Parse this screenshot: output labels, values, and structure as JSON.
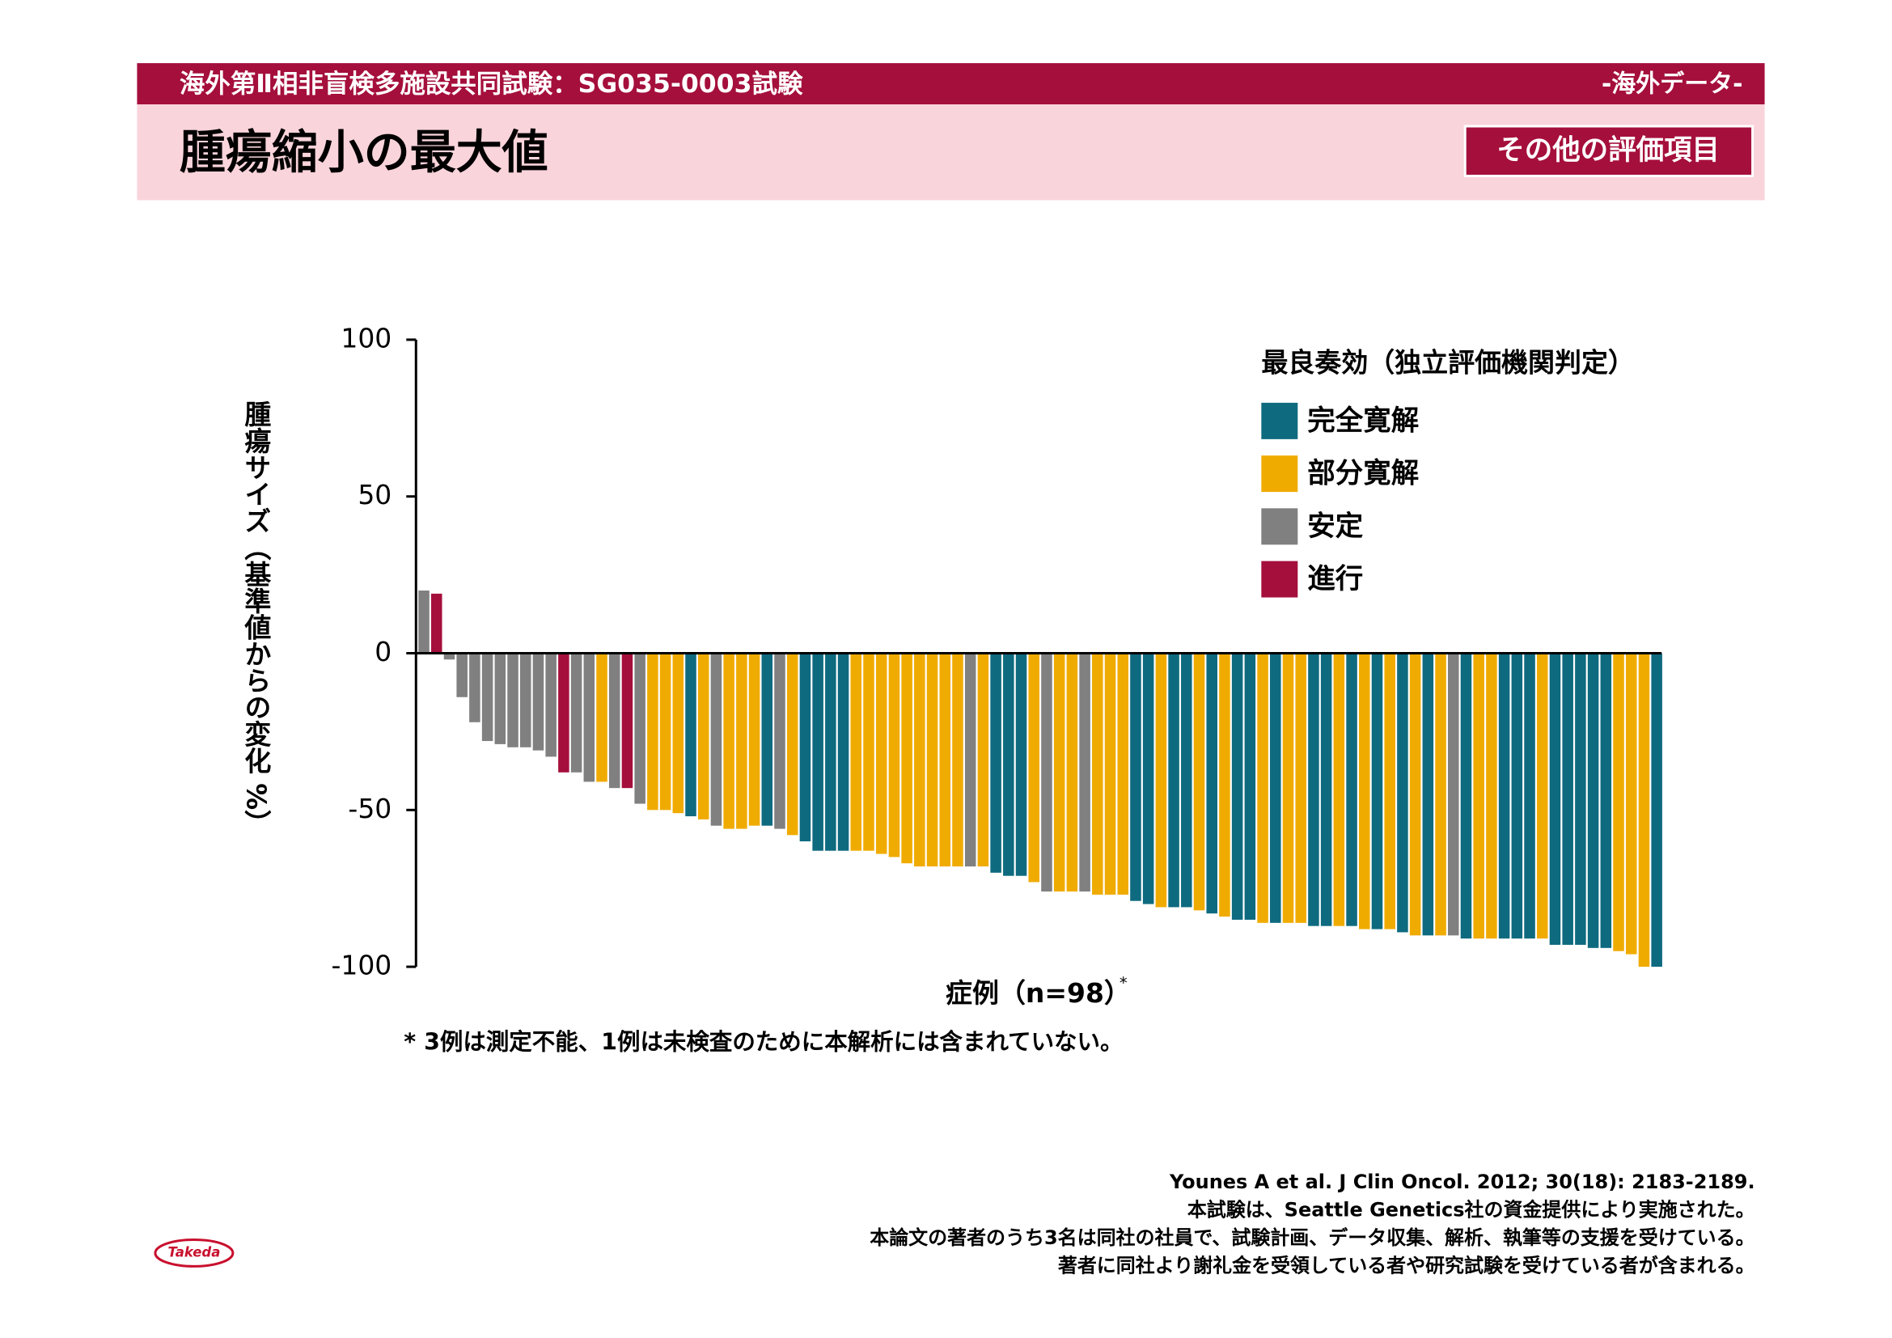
{
  "header": {
    "study": "海外第Ⅱ相非盲検多施設共同試験：SG035-0003試験",
    "tag": "-海外データ-",
    "badge": "その他の評価項目"
  },
  "chart_data": {
    "type": "bar",
    "title": "腫瘍縮小の最大値",
    "ylabel": "腫瘍サイズ（基準値からの変化 %）",
    "xlabel": "症例（n=98）",
    "xlabel_mark": "*",
    "legend_title": "最良奏効（独立評価機関判定）",
    "ylim": [
      -100,
      100
    ],
    "yticks": [
      100,
      50,
      0,
      -50,
      -100
    ],
    "series": [
      {
        "name": "完全寛解",
        "color": "#0e6a7f",
        "values": [
          null,
          null,
          null,
          null,
          null,
          null,
          null,
          null,
          null,
          null,
          null,
          null,
          null,
          null,
          null,
          null,
          null,
          null,
          null,
          null,
          null,
          -52,
          null,
          null,
          null,
          null,
          null,
          -55,
          null,
          null,
          -60,
          -63,
          -63,
          -63,
          null,
          null,
          null,
          null,
          null,
          null,
          null,
          null,
          null,
          null,
          null,
          -70,
          -71,
          -71,
          null,
          null,
          null,
          null,
          null,
          null,
          null,
          null,
          -79,
          -80,
          null,
          -81,
          -81,
          null,
          -83,
          null,
          -85,
          -85,
          null,
          -86,
          null,
          null,
          -87,
          -87,
          null,
          -87,
          null,
          -88,
          null,
          -89,
          null,
          -90,
          null,
          null,
          -91,
          null,
          null,
          -91,
          -91,
          -91,
          null,
          -93,
          -93,
          -93,
          -94,
          -94,
          null,
          null,
          null,
          -100
        ]
      },
      {
        "name": "部分寛解",
        "color": "#f0ab00",
        "values": [
          null,
          null,
          null,
          null,
          null,
          null,
          null,
          null,
          null,
          null,
          null,
          null,
          null,
          null,
          -41,
          null,
          null,
          null,
          -50,
          -50,
          -51,
          null,
          -53,
          null,
          -56,
          -56,
          -55,
          null,
          null,
          -58,
          null,
          null,
          null,
          null,
          -63,
          -63,
          -64,
          -65,
          -67,
          -68,
          -68,
          -68,
          -68,
          null,
          -68,
          null,
          null,
          null,
          -73,
          null,
          -76,
          -76,
          null,
          -77,
          -77,
          -77,
          null,
          null,
          -81,
          null,
          null,
          -82,
          null,
          -84,
          null,
          null,
          -86,
          null,
          -86,
          -86,
          null,
          null,
          -87,
          null,
          -88,
          null,
          -88,
          null,
          -90,
          null,
          -90,
          null,
          null,
          -91,
          -91,
          null,
          null,
          null,
          -91,
          null,
          null,
          null,
          null,
          null,
          -95,
          -96,
          -100,
          null
        ]
      },
      {
        "name": "安定",
        "color": "#808080",
        "values": [
          20,
          null,
          -2,
          -14,
          -22,
          -28,
          -29,
          -30,
          -30,
          -31,
          -33,
          null,
          -38,
          -41,
          null,
          -43,
          null,
          -48,
          null,
          null,
          null,
          null,
          null,
          -55,
          null,
          null,
          null,
          null,
          -56,
          null,
          null,
          null,
          null,
          null,
          null,
          null,
          null,
          null,
          null,
          null,
          null,
          null,
          null,
          -68,
          null,
          null,
          null,
          null,
          null,
          -76,
          null,
          null,
          -76,
          null,
          null,
          null,
          null,
          null,
          null,
          null,
          null,
          null,
          null,
          null,
          null,
          null,
          null,
          null,
          null,
          null,
          null,
          null,
          null,
          null,
          null,
          null,
          null,
          null,
          null,
          null,
          null,
          -90,
          null,
          null,
          null,
          null,
          null,
          null,
          null,
          null,
          null,
          null,
          null,
          null,
          null,
          null,
          null,
          null
        ]
      },
      {
        "name": "進行",
        "color": "#a50f3c",
        "values": [
          null,
          19,
          null,
          null,
          null,
          null,
          null,
          null,
          null,
          null,
          null,
          -38,
          null,
          null,
          null,
          null,
          -43,
          null,
          null,
          null,
          null,
          null,
          null,
          null,
          null,
          null,
          null,
          null,
          null,
          null,
          null,
          null,
          null,
          null,
          null,
          null,
          null,
          null,
          null,
          null,
          null,
          null,
          null,
          null,
          null,
          null,
          null,
          null,
          null,
          null,
          null,
          null,
          null,
          null,
          null,
          null,
          null,
          null,
          null,
          null,
          null,
          null,
          null,
          null,
          null,
          null,
          null,
          null,
          null,
          null,
          null,
          null,
          null,
          null,
          null,
          null,
          null,
          null,
          null,
          null,
          null,
          null,
          null,
          null,
          null,
          null,
          null,
          null,
          null,
          null,
          null,
          null,
          null,
          null,
          null,
          null,
          null,
          null
        ]
      }
    ]
  },
  "footnote": "* 3例は測定不能、1例は未検査のために本解析には含まれていない。",
  "citations": [
    "Younes A et al. J Clin Oncol. 2012; 30(18): 2183-2189.",
    "本試験は、Seattle Genetics社の資金提供により実施された。",
    "本論文の著者のうち3名は同社の社員で、試験計画、データ収集、解析、執筆等の支援を受けている。",
    "著者に同社より謝礼金を受領している者や研究試験を受けている者が含まれる。"
  ],
  "logo": "Takeda"
}
